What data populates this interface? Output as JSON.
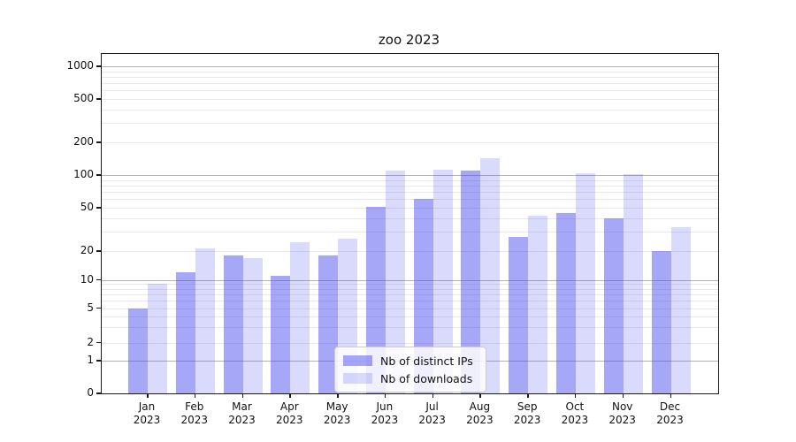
{
  "chart_data": {
    "type": "bar",
    "title": "zoo 2023",
    "categories": [
      "Jan 2023",
      "Feb 2023",
      "Mar 2023",
      "Apr 2023",
      "May 2023",
      "Jun 2023",
      "Jul 2023",
      "Aug 2023",
      "Sep 2023",
      "Oct 2023",
      "Nov 2023",
      "Dec 2023"
    ],
    "series": [
      {
        "name": "Nb of distinct IPs",
        "color": "rgba(68,68,240,0.47)",
        "values": [
          5,
          12,
          18,
          11,
          18,
          51,
          60,
          110,
          27,
          45,
          40,
          20
        ]
      },
      {
        "name": "Nb of downloads",
        "color": "rgba(68,68,240,0.20)",
        "values": [
          9,
          21,
          17,
          24,
          26,
          110,
          113,
          143,
          42,
          104,
          102,
          33
        ]
      }
    ],
    "yscale": "symlog",
    "ylim": [
      0,
      1300
    ],
    "yticks": [
      0,
      1,
      2,
      5,
      10,
      20,
      50,
      100,
      200,
      500,
      1000
    ],
    "grid": true,
    "legend_position": "lower center",
    "colors": {
      "major_grid": "#b3b3b3",
      "minor_grid": "#e8e8e8",
      "spine": "#1a1a1a",
      "text": "#111111"
    }
  }
}
